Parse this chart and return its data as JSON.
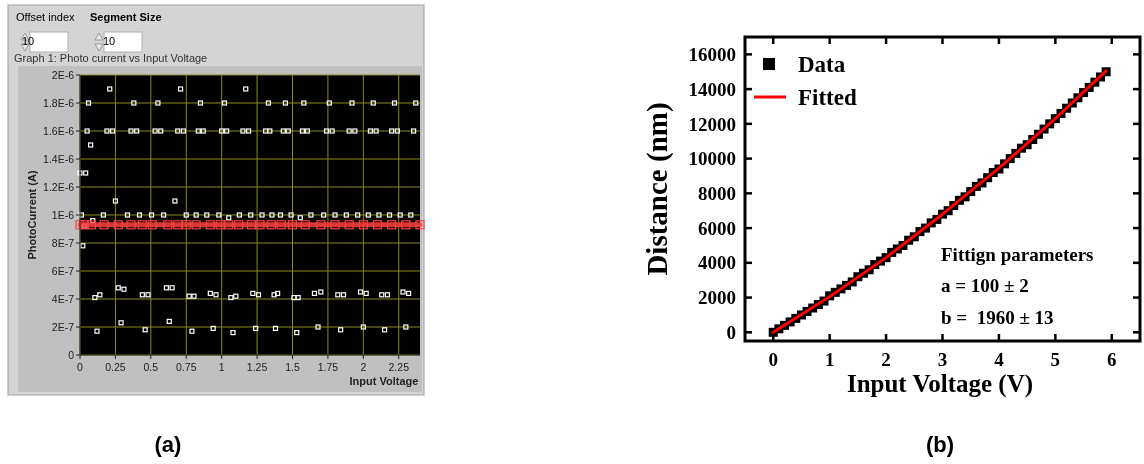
{
  "chart_data": [
    {
      "type": "scatter",
      "title": "Graph 1: Photo current vs Input Voltage",
      "xlabel": "Input Voltage",
      "ylabel": "PhotoCurrent (A)",
      "annotations": [
        "Offset index",
        "10",
        "Segment Size",
        "10",
        "(a)"
      ],
      "xlim": [
        0,
        2.4
      ],
      "xticks": [
        0,
        0.25,
        0.5,
        0.75,
        1,
        1.25,
        1.5,
        1.75,
        2,
        2.25
      ],
      "ylim": [
        0,
        2e-06
      ],
      "yticks": [
        {
          "value": 0,
          "label": "0"
        },
        {
          "value": 2e-07,
          "label": "2E-7"
        },
        {
          "value": 4e-07,
          "label": "4E-7"
        },
        {
          "value": 6e-07,
          "label": "6E-7"
        },
        {
          "value": 8e-07,
          "label": "8E-7"
        },
        {
          "value": 1e-06,
          "label": "1E-6"
        },
        {
          "value": 1.2e-06,
          "label": "1.2E-6"
        },
        {
          "value": 1.4e-06,
          "label": "1.4E-6"
        },
        {
          "value": 1.6e-06,
          "label": "1.6E-6"
        },
        {
          "value": 1.8e-06,
          "label": "1.8E-6"
        },
        {
          "value": 2e-06,
          "label": "2E-6"
        }
      ],
      "grid": true,
      "series": [
        {
          "marker": "square",
          "color": "#ffffff",
          "x": [
            0,
            0.01,
            0.02,
            0.03,
            0.04,
            0.05,
            0.06,
            0.075,
            0.09,
            0.105,
            0.12,
            0.14,
            0.165,
            0.19,
            0.21,
            0.23,
            0.25,
            0.27,
            0.29,
            0.31,
            0.335,
            0.36,
            0.38,
            0.4,
            0.42,
            0.44,
            0.46,
            0.48,
            0.505,
            0.53,
            0.55,
            0.57,
            0.59,
            0.61,
            0.63,
            0.65,
            0.67,
            0.69,
            0.71,
            0.73,
            0.75,
            0.77,
            0.79,
            0.805,
            0.82,
            0.835,
            0.85,
            0.87,
            0.895,
            0.92,
            0.94,
            0.96,
            0.98,
            1.0,
            1.02,
            1.035,
            1.05,
            1.065,
            1.08,
            1.1,
            1.125,
            1.15,
            1.17,
            1.19,
            1.205,
            1.22,
            1.24,
            1.26,
            1.285,
            1.31,
            1.33,
            1.34,
            1.355,
            1.37,
            1.38,
            1.395,
            1.415,
            1.435,
            1.45,
            1.47,
            1.49,
            1.51,
            1.53,
            1.54,
            1.555,
            1.57,
            1.58,
            1.605,
            1.63,
            1.655,
            1.68,
            1.7,
            1.72,
            1.74,
            1.76,
            1.78,
            1.8,
            1.82,
            1.84,
            1.86,
            1.88,
            1.9,
            1.92,
            1.94,
            1.96,
            1.98,
            2.0,
            2.02,
            2.035,
            2.05,
            2.07,
            2.09,
            2.11,
            2.13,
            2.15,
            2.17,
            2.185,
            2.2,
            2.22,
            2.24,
            2.26,
            2.28,
            2.3,
            2.32,
            2.335,
            2.355,
            2.37
          ],
          "values": [
            1.3e-06,
            1e-06,
            7.8e-07,
            9.2e-07,
            1.3e-06,
            1.6e-06,
            1.8e-06,
            1.5e-06,
            9.6e-07,
            4.1e-07,
            1.7e-07,
            4.3e-07,
            1e-06,
            1.6e-06,
            1.9e-06,
            1.6e-06,
            1.1e-06,
            4.8e-07,
            2.3e-07,
            4.7e-07,
            1e-06,
            1.6e-06,
            1.8e-06,
            1.6e-06,
            1e-06,
            4.3e-07,
            1.8e-07,
            4.3e-07,
            1e-06,
            1.6e-06,
            1.8e-06,
            1.6e-06,
            1e-06,
            4.8e-07,
            2.4e-07,
            4.8e-07,
            1.1e-06,
            1.6e-06,
            1.9e-06,
            1.6e-06,
            1e-06,
            4.2e-07,
            1.7e-07,
            4.2e-07,
            1e-06,
            1.6e-06,
            1.8e-06,
            1.6e-06,
            1e-06,
            4.4e-07,
            1.9e-07,
            4.3e-07,
            1e-06,
            1.6e-06,
            1.8e-06,
            1.6e-06,
            9.8e-07,
            4.1e-07,
            1.6e-07,
            4.2e-07,
            1e-06,
            1.6e-06,
            1.9e-06,
            1.6e-06,
            1e-06,
            4.4e-07,
            1.9e-07,
            4.3e-07,
            1e-06,
            1.6e-06,
            1.8e-06,
            1.6e-06,
            1e-06,
            4.3e-07,
            1.9e-07,
            4.4e-07,
            1e-06,
            1.6e-06,
            1.8e-06,
            1.6e-06,
            1e-06,
            4.1e-07,
            1.6e-07,
            4.1e-07,
            9.8e-07,
            1.6e-06,
            1.8e-06,
            1.6e-06,
            1e-06,
            4.4e-07,
            2e-07,
            4.5e-07,
            1e-06,
            1.6e-06,
            1.8e-06,
            1.6e-06,
            1e-06,
            4.3e-07,
            1.8e-07,
            4.3e-07,
            1e-06,
            1.6e-06,
            1.8e-06,
            1.6e-06,
            1e-06,
            4.5e-07,
            2e-07,
            4.4e-07,
            1e-06,
            1.6e-06,
            1.8e-06,
            1.6e-06,
            1e-06,
            4.3e-07,
            1.8e-07,
            4.3e-07,
            1e-06,
            1.6e-06,
            1.8e-06,
            1.6e-06,
            1e-06,
            4.5e-07,
            2e-07,
            4.4e-07,
            1e-06,
            1.6e-06,
            1.8e-06
          ]
        },
        {
          "type": "line",
          "marker": "square",
          "color": "#ff4040",
          "x": [
            0,
            0.03,
            0.08,
            0.17,
            0.27,
            0.36,
            0.44,
            0.51,
            0.62,
            0.69,
            0.75,
            0.82,
            0.92,
            0.99,
            1.05,
            1.12,
            1.21,
            1.27,
            1.35,
            1.42,
            1.5,
            1.59,
            1.7,
            1.8,
            1.9,
            2.0,
            2.1,
            2.2,
            2.3,
            2.4
          ],
          "values": [
            9.3e-07,
            9.3e-07,
            9.3e-07,
            9.3e-07,
            9.3e-07,
            9.3e-07,
            9.3e-07,
            9.3e-07,
            9.3e-07,
            9.3e-07,
            9.3e-07,
            9.3e-07,
            9.3e-07,
            9.3e-07,
            9.3e-07,
            9.3e-07,
            9.3e-07,
            9.3e-07,
            9.3e-07,
            9.3e-07,
            9.3e-07,
            9.3e-07,
            9.3e-07,
            9.3e-07,
            9.3e-07,
            9.3e-07,
            9.3e-07,
            9.3e-07,
            9.3e-07,
            9.3e-07
          ]
        }
      ]
    },
    {
      "type": "scatter",
      "xlabel": "Input Voltage (V)",
      "ylabel": "Distance (nm)",
      "annotations": [
        "Fittign parameters",
        "a = 100 ± 2",
        "b =  1960 ± 13",
        "(b)"
      ],
      "xlim": [
        -0.5,
        6.5
      ],
      "xticks": [
        0,
        1,
        2,
        3,
        4,
        5,
        6
      ],
      "ylim": [
        -500,
        17000
      ],
      "yticks": [
        0,
        2000,
        4000,
        6000,
        8000,
        10000,
        12000,
        14000,
        16000
      ],
      "legend": "top left",
      "series": [
        {
          "name": "Data",
          "marker": "square",
          "color": "#000000",
          "x": [
            0,
            0.1,
            0.2,
            0.3,
            0.4,
            0.5,
            0.6,
            0.7,
            0.8,
            0.9,
            1.0,
            1.1,
            1.2,
            1.3,
            1.4,
            1.5,
            1.6,
            1.7,
            1.8,
            1.9,
            2.0,
            2.1,
            2.2,
            2.3,
            2.4,
            2.5,
            2.6,
            2.7,
            2.8,
            2.9,
            3.0,
            3.1,
            3.2,
            3.3,
            3.4,
            3.5,
            3.6,
            3.7,
            3.8,
            3.9,
            4.0,
            4.1,
            4.2,
            4.3,
            4.4,
            4.5,
            4.6,
            4.7,
            4.8,
            4.9,
            5.0,
            5.1,
            5.2,
            5.3,
            5.4,
            5.5,
            5.6,
            5.7,
            5.8,
            5.9
          ],
          "values": [
            0,
            200,
            400,
            600,
            800,
            1000,
            1200,
            1400,
            1600,
            1800,
            2100,
            2300,
            2500,
            2700,
            2900,
            3200,
            3400,
            3600,
            3900,
            4100,
            4300,
            4600,
            4800,
            5000,
            5300,
            5500,
            5800,
            6000,
            6300,
            6500,
            6800,
            7000,
            7300,
            7600,
            7800,
            8100,
            8400,
            8600,
            8900,
            9200,
            9400,
            9700,
            10000,
            10300,
            10600,
            10800,
            11100,
            11400,
            11700,
            12000,
            12300,
            12600,
            12900,
            13200,
            13500,
            13800,
            14100,
            14400,
            14700,
            15000
          ]
        },
        {
          "type": "line",
          "name": "Fitted",
          "marker": "none",
          "color": "#ff0000",
          "x": [
            0,
            1,
            2,
            3,
            4,
            5,
            5.9
          ],
          "values": [
            0,
            2050,
            4300,
            6800,
            9450,
            12300,
            15050
          ]
        }
      ]
    }
  ]
}
